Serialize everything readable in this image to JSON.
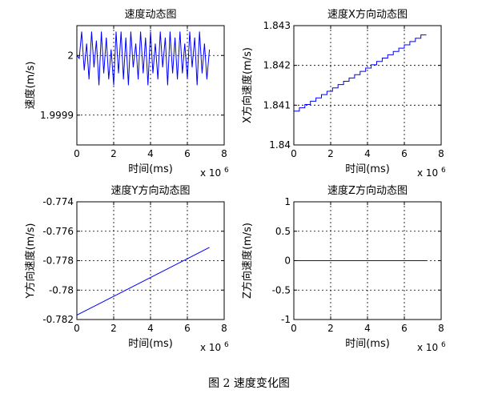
{
  "figure_caption": "图 2  速度变化图",
  "exponent_label": "x 10",
  "exponent_power": "6",
  "colors": {
    "line": "#0000ff",
    "axes": "#000000",
    "grid": "#000000"
  },
  "chart_data": [
    {
      "type": "line",
      "title": "速度动态图",
      "xlabel": "时间(ms)",
      "ylabel": "速度(m/s)",
      "xlim": [
        0,
        8
      ],
      "ylim": [
        1.99985,
        2.00005
      ],
      "xticks": [
        0,
        2,
        4,
        6,
        8
      ],
      "xticklabels": [
        "0",
        "2",
        "4",
        "6",
        "8"
      ],
      "yticks": [
        1.9999,
        2.0
      ],
      "yticklabels": [
        "1.9999",
        "2"
      ],
      "grid": true,
      "series": [
        {
          "x": [
            0,
            0.13,
            0.26,
            0.4,
            0.53,
            0.66,
            0.8,
            0.93,
            1.06,
            1.2,
            1.33,
            1.46,
            1.6,
            1.73,
            1.86,
            2.0,
            2.13,
            2.26,
            2.4,
            2.53,
            2.66,
            2.8,
            2.93,
            3.06,
            3.2,
            3.33,
            3.46,
            3.6,
            3.73,
            3.86,
            4.0,
            4.13,
            4.26,
            4.4,
            4.53,
            4.66,
            4.8,
            4.93,
            5.06,
            5.2,
            5.33,
            5.46,
            5.6,
            5.73,
            5.86,
            6.0,
            6.13,
            6.26,
            6.4,
            6.53,
            6.66,
            6.8,
            6.93,
            7.06,
            7.2
          ],
          "y": [
            2.0,
            1.999995,
            2.00004,
            1.999975,
            2.00002,
            1.99996,
            2.00004,
            1.99998,
            2.000025,
            1.99995,
            2.00004,
            1.99997,
            2.00003,
            1.99996,
            2.00001,
            1.99995,
            2.00004,
            1.99997,
            2.00004,
            1.99996,
            2.00003,
            1.99995,
            2.00004,
            1.99998,
            2.00002,
            1.99996,
            2.00004,
            1.99997,
            2.00003,
            1.99995,
            2.00004,
            1.99997,
            2.00002,
            1.99996,
            2.00004,
            1.99998,
            2.00003,
            1.99995,
            2.00004,
            1.99997,
            2.00003,
            1.99996,
            2.00004,
            1.99997,
            2.00002,
            1.99996,
            2.00004,
            1.99998,
            2.00003,
            1.99995,
            2.00004,
            1.99997,
            2.00002,
            1.99996,
            2.00001
          ]
        }
      ]
    },
    {
      "type": "line",
      "title": "速度X方向动态图",
      "xlabel": "时间(ms)",
      "ylabel": "X方向速度(m/s)",
      "xlim": [
        0,
        8
      ],
      "ylim": [
        1.84,
        1.843
      ],
      "xticks": [
        0,
        2,
        4,
        6,
        8
      ],
      "xticklabels": [
        "0",
        "2",
        "4",
        "6",
        "8"
      ],
      "yticks": [
        1.84,
        1.841,
        1.842,
        1.843
      ],
      "yticklabels": [
        "1.84",
        "1.841",
        "1.842",
        "1.843"
      ],
      "grid": true,
      "series": [
        {
          "x": [
            0,
            7.2
          ],
          "y": [
            1.84085,
            1.84285
          ],
          "steps": 24
        }
      ]
    },
    {
      "type": "line",
      "title": "速度Y方向动态图",
      "xlabel": "时间(ms)",
      "ylabel": "Y方向速度(m/s)",
      "xlim": [
        0,
        8
      ],
      "ylim": [
        -0.782,
        -0.774
      ],
      "xticks": [
        0,
        2,
        4,
        6,
        8
      ],
      "xticklabels": [
        "0",
        "2",
        "4",
        "6",
        "8"
      ],
      "yticks": [
        -0.782,
        -0.78,
        -0.778,
        -0.776,
        -0.774
      ],
      "yticklabels": [
        "-0.782",
        "-0.78",
        "-0.778",
        "-0.776",
        "-0.774"
      ],
      "grid": true,
      "series": [
        {
          "x": [
            0,
            7.2
          ],
          "y": [
            -0.7817,
            -0.7771
          ],
          "steps": 0
        }
      ]
    },
    {
      "type": "line",
      "title": "速度Z方向动态图",
      "xlabel": "时间(ms)",
      "ylabel": "Z方向速度(m/s)",
      "xlim": [
        0,
        8
      ],
      "ylim": [
        -1,
        1
      ],
      "xticks": [
        0,
        2,
        4,
        6,
        8
      ],
      "xticklabels": [
        "0",
        "2",
        "4",
        "6",
        "8"
      ],
      "yticks": [
        -1,
        -0.5,
        0,
        0.5,
        1
      ],
      "yticklabels": [
        "-1",
        "-0.5",
        "0",
        "0.5",
        "1"
      ],
      "grid": true,
      "series": [
        {
          "x": [
            0,
            7.2
          ],
          "y": [
            0,
            0
          ],
          "steps": 0
        }
      ]
    }
  ]
}
